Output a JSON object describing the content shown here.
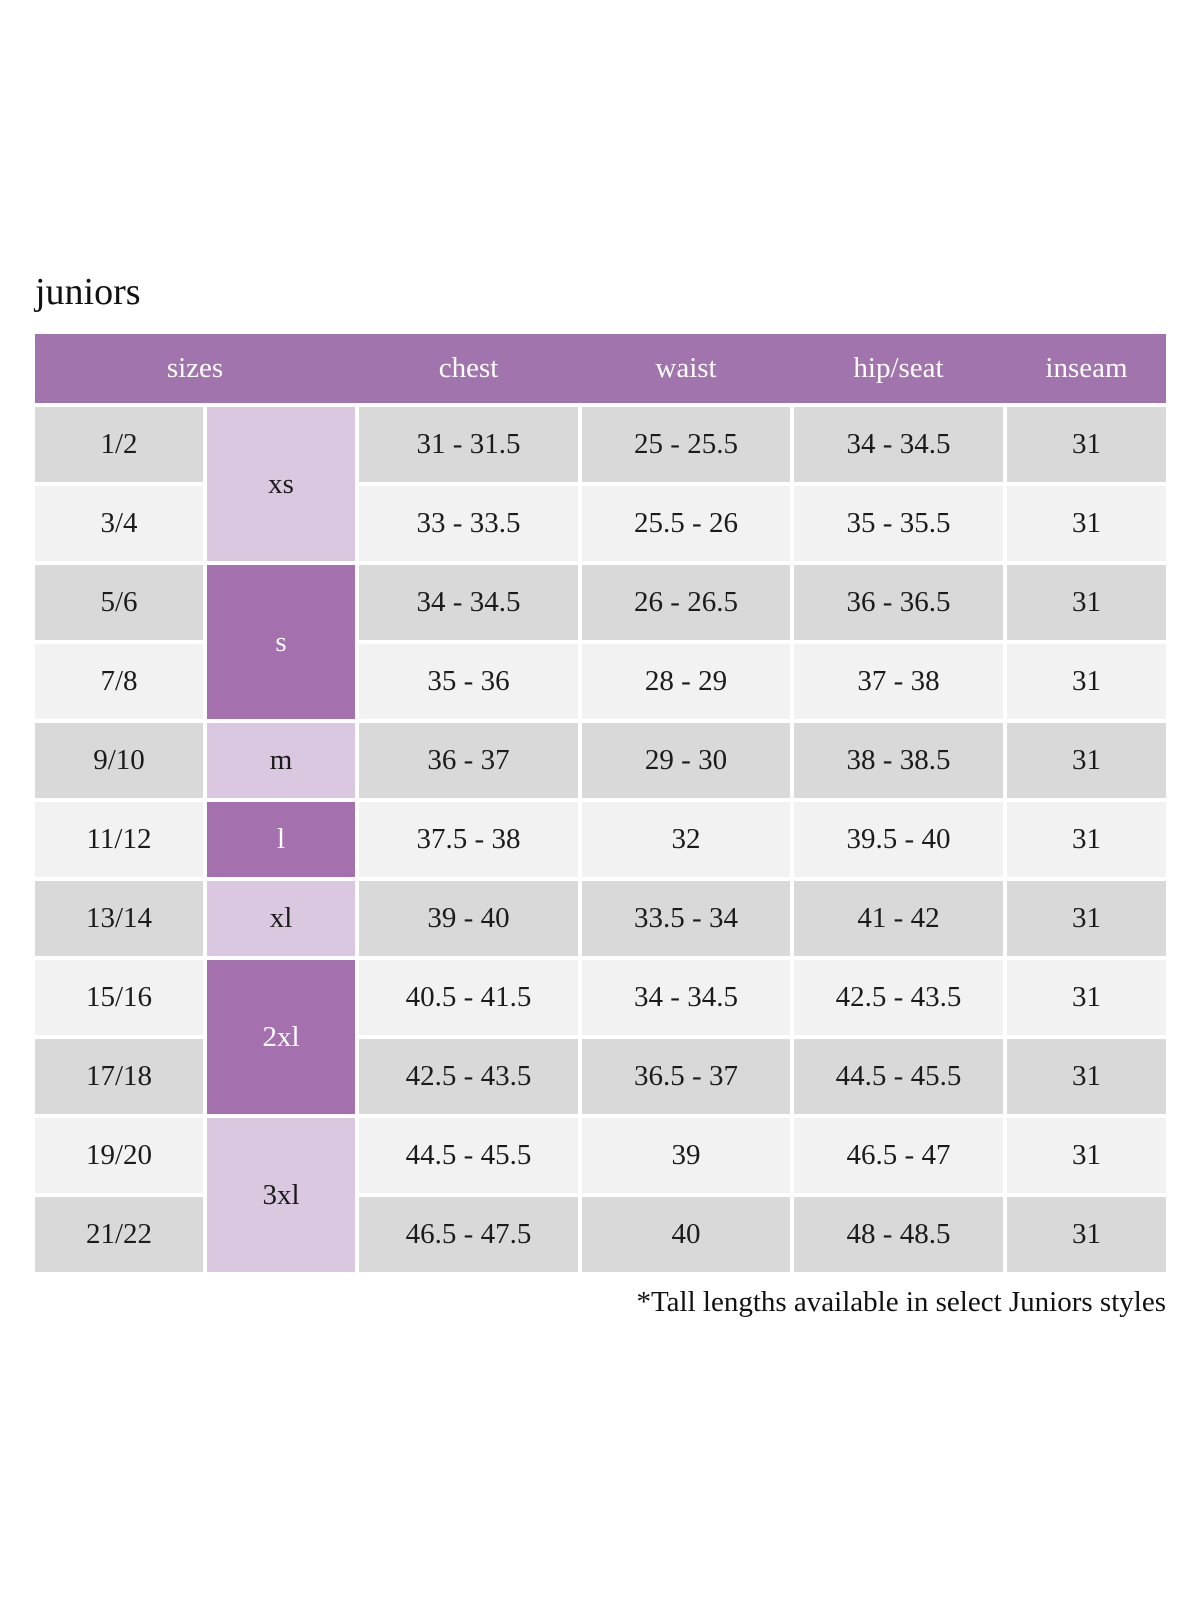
{
  "page": {
    "title": "juniors",
    "footnote": "*Tall lengths available in select Juniors styles"
  },
  "colors": {
    "header_bg": "#a274ad",
    "header_text": "#ffffff",
    "letter_dark_bg": "#a471ae",
    "letter_light_bg": "#d9c8e0",
    "row_dark_bg": "#d9d9d9",
    "row_light_bg": "#f2f2f2",
    "text": "#1b1b1b"
  },
  "table": {
    "headers": {
      "sizes": "sizes",
      "chest": "chest",
      "waist": "waist",
      "hip_seat": "hip/seat",
      "inseam": "inseam"
    },
    "letter_groups": [
      {
        "label": "xs",
        "spans_rows": "1/2 and 3/4",
        "shade": "light"
      },
      {
        "label": "s",
        "spans_rows": "5/6 and 7/8",
        "shade": "dark"
      },
      {
        "label": "m",
        "spans_rows": "9/10",
        "shade": "light"
      },
      {
        "label": "l",
        "spans_rows": "11/12",
        "shade": "dark"
      },
      {
        "label": "xl",
        "spans_rows": "13/14",
        "shade": "light"
      },
      {
        "label": "2xl",
        "spans_rows": "15/16 and 17/18",
        "shade": "dark"
      },
      {
        "label": "3xl",
        "spans_rows": "19/20 and 21/22",
        "shade": "light"
      }
    ],
    "rows": [
      {
        "size": "1/2",
        "chest": "31 - 31.5",
        "waist": "25 - 25.5",
        "hip_seat": "34 - 34.5",
        "inseam": "31"
      },
      {
        "size": "3/4",
        "chest": "33 - 33.5",
        "waist": "25.5 - 26",
        "hip_seat": "35 - 35.5",
        "inseam": "31"
      },
      {
        "size": "5/6",
        "chest": "34 - 34.5",
        "waist": "26 - 26.5",
        "hip_seat": "36 - 36.5",
        "inseam": "31"
      },
      {
        "size": "7/8",
        "chest": "35 - 36",
        "waist": "28 - 29",
        "hip_seat": "37 - 38",
        "inseam": "31"
      },
      {
        "size": "9/10",
        "chest": "36 - 37",
        "waist": "29 - 30",
        "hip_seat": "38 - 38.5",
        "inseam": "31"
      },
      {
        "size": "11/12",
        "chest": "37.5 - 38",
        "waist": "32",
        "hip_seat": "39.5 - 40",
        "inseam": "31"
      },
      {
        "size": "13/14",
        "chest": "39 - 40",
        "waist": "33.5 - 34",
        "hip_seat": "41 - 42",
        "inseam": "31"
      },
      {
        "size": "15/16",
        "chest": "40.5 - 41.5",
        "waist": "34 - 34.5",
        "hip_seat": "42.5 - 43.5",
        "inseam": "31"
      },
      {
        "size": "17/18",
        "chest": "42.5 - 43.5",
        "waist": "36.5 - 37",
        "hip_seat": "44.5 - 45.5",
        "inseam": "31"
      },
      {
        "size": "19/20",
        "chest": "44.5 - 45.5",
        "waist": "39",
        "hip_seat": "46.5 - 47",
        "inseam": "31"
      },
      {
        "size": "21/22",
        "chest": "46.5 - 47.5",
        "waist": "40",
        "hip_seat": "48 - 48.5",
        "inseam": "31"
      }
    ]
  }
}
